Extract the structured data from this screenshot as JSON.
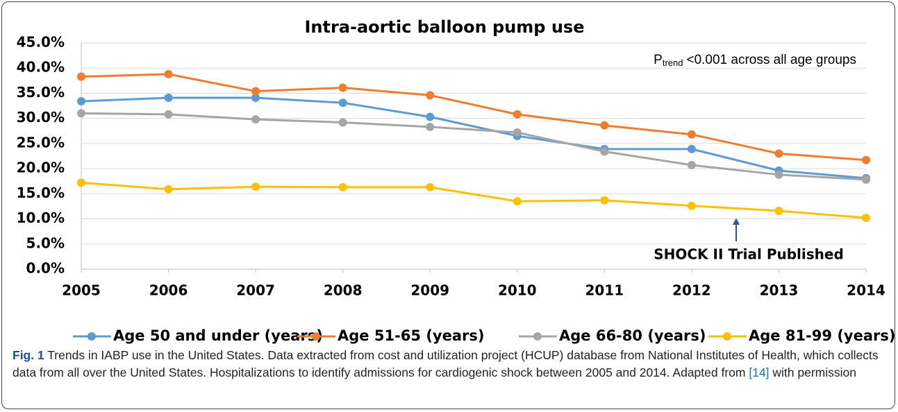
{
  "chart_data": {
    "type": "line",
    "title": "Intra-aortic balloon pump use",
    "annotation": {
      "main": "P",
      "sub": "trend",
      "rest": "<0.001 across all age groups"
    },
    "event_label": "SHOCK II Trial Published",
    "x": [
      2005,
      2006,
      2007,
      2008,
      2009,
      2010,
      2011,
      2012,
      2013,
      2014
    ],
    "xlim": [
      2005,
      2014
    ],
    "xticks": [
      2005,
      2006,
      2007,
      2008,
      2009,
      2010,
      2011,
      2012,
      2013,
      2014
    ],
    "ylim": [
      0,
      45
    ],
    "yticks": [
      {
        "value": 0,
        "label": "0.0%"
      },
      {
        "value": 5,
        "label": "5.0%"
      },
      {
        "value": 10,
        "label": "10.0%"
      },
      {
        "value": 15,
        "label": "15.0%"
      },
      {
        "value": 20,
        "label": "20.0%"
      },
      {
        "value": 25,
        "label": "25.0%"
      },
      {
        "value": 30,
        "label": "30.0%"
      },
      {
        "value": 35,
        "label": "35.0%"
      },
      {
        "value": 40,
        "label": "40.0%"
      },
      {
        "value": 45,
        "label": "45.0%"
      }
    ],
    "grid": true,
    "series": [
      {
        "name": "Age 50 and under (years)",
        "color": "#5b9bd5",
        "values": [
          33.4,
          34.1,
          34.1,
          33.1,
          30.3,
          26.5,
          23.9,
          23.9,
          19.6,
          18.1
        ]
      },
      {
        "name": "Age 51-65 (years)",
        "color": "#ed7d31",
        "values": [
          38.3,
          38.8,
          35.4,
          36.1,
          34.6,
          30.8,
          28.6,
          26.8,
          23.0,
          21.7
        ]
      },
      {
        "name": "Age 66-80 (years)",
        "color": "#a5a5a5",
        "values": [
          31.0,
          30.8,
          29.8,
          29.2,
          28.3,
          27.2,
          23.4,
          20.7,
          18.8,
          17.8
        ]
      },
      {
        "name": "Age 81-99 (years)",
        "color": "#ffc000",
        "values": [
          17.2,
          15.9,
          16.4,
          16.3,
          16.3,
          13.5,
          13.7,
          12.6,
          11.6,
          10.2
        ]
      }
    ]
  },
  "caption": {
    "label": "Fig. 1",
    "text": " Trends in IABP use in the United States. Data extracted from cost and utilization project (HCUP) database from National Institutes of Health, which collects data from all over the United States. Hospitalizations to identify admissions for cardiogenic shock between 2005 and 2014. Adapted from ",
    "ref": "[14]",
    "end": " with permission"
  }
}
